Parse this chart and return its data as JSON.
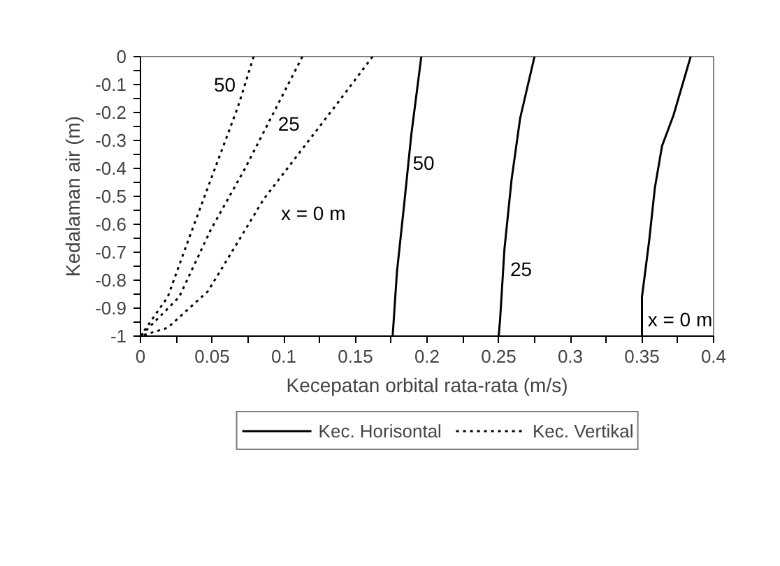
{
  "chart_data": {
    "type": "line",
    "xlabel": "Kecepatan orbital rata-rata (m/s)",
    "ylabel": "Kedalaman air (m)",
    "xlim": [
      0,
      0.4
    ],
    "ylim": [
      -1,
      0
    ],
    "xticks": [
      0,
      {
        "value": 0.025,
        "label": null
      },
      0.05,
      {
        "value": 0.075,
        "label": null
      },
      0.1,
      {
        "value": 0.125,
        "label": null
      },
      0.15,
      {
        "value": 0.175,
        "label": null
      },
      0.2,
      {
        "value": 0.225,
        "label": null
      },
      0.25,
      {
        "value": 0.275,
        "label": null
      },
      0.3,
      {
        "value": 0.325,
        "label": null
      },
      0.35,
      {
        "value": 0.375,
        "label": null
      },
      0.4
    ],
    "yticks": [
      0,
      {
        "value": -0.05,
        "label": null
      },
      -0.1,
      {
        "value": -0.15,
        "label": null
      },
      -0.2,
      {
        "value": -0.25,
        "label": null
      },
      -0.3,
      {
        "value": -0.35,
        "label": null
      },
      -0.4,
      {
        "value": -0.45,
        "label": null
      },
      -0.5,
      {
        "value": -0.55,
        "label": null
      },
      -0.6,
      {
        "value": -0.65,
        "label": null
      },
      -0.7,
      {
        "value": -0.75,
        "label": null
      },
      -0.8,
      {
        "value": -0.85,
        "label": null
      },
      -0.9,
      {
        "value": -0.95,
        "label": null
      },
      -1
    ],
    "grid": false,
    "legend": "bottom",
    "marker": "none",
    "series": [
      {
        "name": "Kec. Horisontal",
        "color": "#000000",
        "line_style": "solid",
        "x": [
          0.384,
          0.372,
          0.364,
          0.359,
          0.355,
          0.35,
          0.35
        ],
        "values": [
          0,
          -0.21,
          -0.32,
          -0.47,
          -0.66,
          -0.86,
          -1
        ]
      },
      {
        "color": "#000000",
        "line_style": "solid",
        "x": [
          0.275,
          0.265,
          0.259,
          0.254,
          0.251,
          0.25
        ],
        "values": [
          0,
          -0.22,
          -0.44,
          -0.69,
          -0.94,
          -1
        ]
      },
      {
        "color": "#000000",
        "line_style": "solid",
        "x": [
          0.196,
          0.189,
          0.184,
          0.179,
          0.176
        ],
        "values": [
          0,
          -0.28,
          -0.53,
          -0.77,
          -1
        ]
      },
      {
        "name": "Kec. Vertikal",
        "color": "#000000",
        "line_style": "dotted",
        "x": [
          0.162,
          0.137,
          0.113,
          0.086,
          0.066,
          0.047,
          0.019,
          0
        ],
        "values": [
          0,
          -0.17,
          -0.33,
          -0.51,
          -0.68,
          -0.84,
          -0.97,
          -1
        ]
      },
      {
        "color": "#000000",
        "line_style": "dotted",
        "x": [
          0.113,
          0.095,
          0.073,
          0.049,
          0.027,
          0
        ],
        "values": [
          0,
          -0.18,
          -0.4,
          -0.62,
          -0.86,
          -1
        ]
      },
      {
        "color": "#000000",
        "line_style": "dotted",
        "x": [
          0.079,
          0.068,
          0.052,
          0.031,
          0.019,
          0
        ],
        "values": [
          0,
          -0.18,
          -0.4,
          -0.69,
          -0.86,
          -1
        ]
      }
    ],
    "annotations": [
      "50",
      "25",
      "x = 0 m",
      "50",
      "25",
      "x = 0 m"
    ]
  }
}
